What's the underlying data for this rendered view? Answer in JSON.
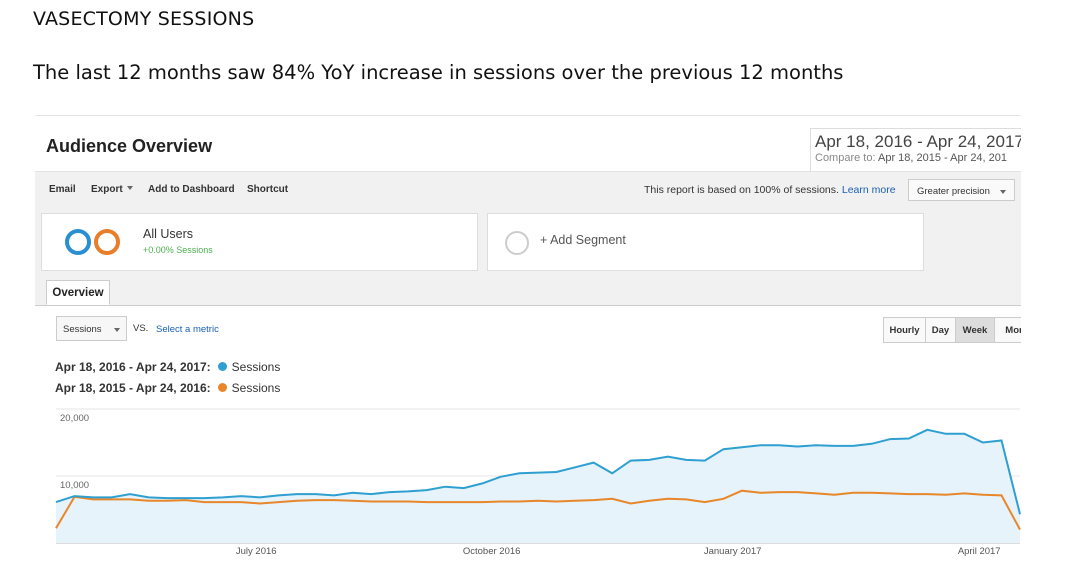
{
  "document": {
    "title": "VASECTOMY SESSIONS",
    "subtitle": "The last 12 months saw 84% YoY increase in sessions over the previous 12 months"
  },
  "report": {
    "title": "Audience Overview",
    "date_range": "Apr 18, 2016 - Apr 24, 2017",
    "compare_label": "Compare to:",
    "compare_range": "Apr 18, 2015 - Apr 24, 201"
  },
  "toolbar": {
    "email": "Email",
    "export": "Export",
    "add_to_dashboard": "Add to Dashboard",
    "shortcut": "Shortcut",
    "report_note": "This report is based on 100% of sessions.",
    "learn_more": "Learn more",
    "precision": "Greater precision"
  },
  "segments": {
    "all_users_name": "All Users",
    "all_users_pct": "+0.00% Sessions",
    "add_segment": "+ Add Segment"
  },
  "tabs": {
    "overview": "Overview"
  },
  "metric_controls": {
    "metric": "Sessions",
    "vs": "VS.",
    "select_metric": "Select a metric"
  },
  "granularity": {
    "hourly": "Hourly",
    "day": "Day",
    "week": "Week",
    "month": "Mor"
  },
  "legend": {
    "current_range": "Apr 18, 2016 - Apr 24, 2017:",
    "current_metric": "Sessions",
    "previous_range": "Apr 18, 2015 - Apr 24, 2016:",
    "previous_metric": "Sessions"
  },
  "colors": {
    "current": "#2e9fd0",
    "previous": "#e8862a",
    "fill": "#e6f3fa",
    "ring_blue": "#2a8fd0",
    "ring_orange": "#e87d2a"
  },
  "chart_data": {
    "type": "area",
    "ylim": [
      0,
      20000
    ],
    "y_tick_labels": [
      "20,000",
      "10,000"
    ],
    "y_ticks": [
      20000,
      10000
    ],
    "x_tick_labels": [
      "July 2016",
      "October 2016",
      "January 2017",
      "April 2017"
    ],
    "x_tick_weeks": [
      10.8,
      23.5,
      36.5,
      49.8
    ],
    "series": [
      {
        "name": "Sessions",
        "period": "Apr 18, 2016 - Apr 24, 2017",
        "values": [
          6100,
          7000,
          6800,
          6800,
          7300,
          6800,
          6700,
          6700,
          6700,
          6800,
          7000,
          6800,
          7100,
          7300,
          7300,
          7100,
          7500,
          7300,
          7600,
          7700,
          7900,
          8400,
          8200,
          8900,
          9900,
          10400,
          10500,
          10600,
          11300,
          12000,
          10400,
          12300,
          12400,
          12900,
          12400,
          12300,
          14000,
          14300,
          14600,
          14600,
          14400,
          14600,
          14500,
          14500,
          14800,
          15500,
          15600,
          16900,
          16300,
          16300,
          15000,
          15300,
          4300
        ]
      },
      {
        "name": "Sessions",
        "period": "Apr 18, 2015 - Apr 24, 2016",
        "values": [
          2200,
          6900,
          6500,
          6500,
          6500,
          6300,
          6300,
          6400,
          6100,
          6100,
          6100,
          5900,
          6100,
          6300,
          6400,
          6400,
          6300,
          6200,
          6200,
          6200,
          6100,
          6100,
          6100,
          6100,
          6200,
          6200,
          6300,
          6200,
          6300,
          6400,
          6600,
          5900,
          6300,
          6600,
          6500,
          6100,
          6600,
          7800,
          7500,
          7600,
          7600,
          7400,
          7200,
          7500,
          7500,
          7400,
          7300,
          7300,
          7200,
          7400,
          7200,
          7100,
          2000
        ]
      }
    ]
  }
}
